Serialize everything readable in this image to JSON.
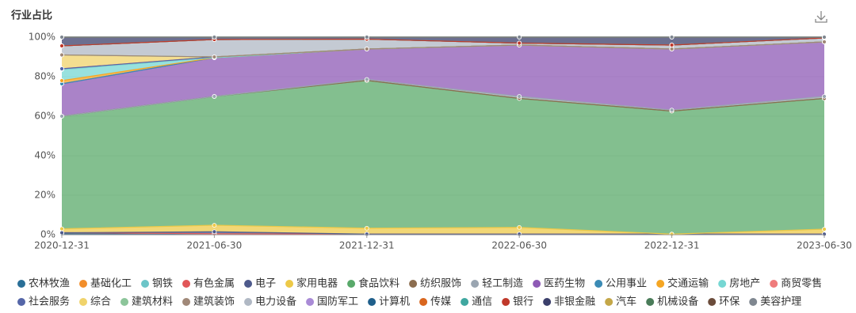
{
  "chart_data": {
    "type": "stacked-area",
    "title": "行业占比",
    "x": [
      "2020-12-31",
      "2021-06-30",
      "2021-12-31",
      "2022-06-30",
      "2022-12-31",
      "2023-06-30"
    ],
    "ylim": [
      0,
      100
    ],
    "yticks": [
      {
        "value": 0,
        "label": "0%"
      },
      {
        "value": 20,
        "label": "20%"
      },
      {
        "value": 40,
        "label": "40%"
      },
      {
        "value": 60,
        "label": "60%"
      },
      {
        "value": 80,
        "label": "80%"
      },
      {
        "value": 100,
        "label": "100%"
      }
    ],
    "grid": true,
    "legend": "bottom",
    "series": [
      {
        "name": "农林牧渔",
        "color": "#2a6f97",
        "values": [
          0.5,
          0.5,
          0.3,
          0.3,
          0.3,
          0.3
        ]
      },
      {
        "name": "基础化工",
        "color": "#f28e2b",
        "values": [
          0.5,
          0,
          0,
          0,
          0,
          0
        ]
      },
      {
        "name": "钢铁",
        "color": "#6cc5c8",
        "values": [
          0,
          0,
          0,
          0,
          0,
          0
        ]
      },
      {
        "name": "有色金属",
        "color": "#e15759",
        "values": [
          0,
          0,
          0,
          0,
          0,
          0
        ]
      },
      {
        "name": "电子",
        "color": "#4e5a8c",
        "values": [
          0,
          1,
          0,
          0,
          0,
          0
        ]
      },
      {
        "name": "家用电器",
        "color": "#edc948",
        "values": [
          2,
          3.3,
          3,
          3.4,
          0,
          2.5
        ]
      },
      {
        "name": "食品饮料",
        "color": "#59a96a",
        "values": [
          57,
          65.2,
          74.8,
          65.3,
          62.3,
          66.2
        ]
      },
      {
        "name": "纺织服饰",
        "color": "#8c6d4f",
        "values": [
          0,
          0,
          0,
          0,
          0,
          0
        ]
      },
      {
        "name": "轻工制造",
        "color": "#9aa5b1",
        "values": [
          0,
          0,
          0.5,
          1,
          0.5,
          1
        ]
      },
      {
        "name": "医药生物",
        "color": "#8e5ab5",
        "values": [
          16.4,
          19.6,
          15.4,
          26,
          30.9,
          27.6
        ]
      },
      {
        "name": "公用事业",
        "color": "#3b8bb5",
        "values": [
          0,
          0,
          0,
          0,
          0,
          0
        ]
      },
      {
        "name": "交通运输",
        "color": "#f5a623",
        "values": [
          1.6,
          0,
          0,
          0,
          0,
          0
        ]
      },
      {
        "name": "房地产",
        "color": "#76d7d3",
        "values": [
          5.6,
          0,
          0,
          0,
          0,
          0
        ]
      },
      {
        "name": "商贸零售",
        "color": "#ef7b7b",
        "values": [
          0.4,
          0.4,
          0,
          0,
          0,
          0
        ]
      },
      {
        "name": "社会服务",
        "color": "#5566a8",
        "values": [
          0,
          0,
          0,
          0,
          0,
          0
        ]
      },
      {
        "name": "综合",
        "color": "#f0d36b",
        "values": [
          7,
          0,
          0,
          0,
          0,
          0
        ]
      },
      {
        "name": "建筑材料",
        "color": "#8cc59a",
        "values": [
          0,
          0,
          0,
          0,
          0,
          0
        ]
      },
      {
        "name": "建筑装饰",
        "color": "#a08878",
        "values": [
          0,
          0,
          0,
          0,
          0,
          0
        ]
      },
      {
        "name": "电力设备",
        "color": "#b0b8c4",
        "values": [
          4.6,
          8.8,
          5,
          1,
          2,
          2
        ]
      },
      {
        "name": "国防军工",
        "color": "#a98bd6",
        "values": [
          0,
          0,
          0,
          0,
          0,
          0
        ]
      },
      {
        "name": "计算机",
        "color": "#1f5f8b",
        "values": [
          0,
          0,
          0,
          0,
          0,
          0
        ]
      },
      {
        "name": "传媒",
        "color": "#d9661e",
        "values": [
          0,
          0,
          0,
          0,
          0,
          0
        ]
      },
      {
        "name": "通信",
        "color": "#3fa7a0",
        "values": [
          0,
          0,
          0,
          0,
          0,
          0
        ]
      },
      {
        "name": "银行",
        "color": "#c0392b",
        "values": [
          0,
          0,
          0,
          0,
          0,
          0
        ]
      },
      {
        "name": "非银金融",
        "color": "#3b3f6b",
        "values": [
          4.4,
          1.2,
          1,
          3,
          4,
          0.4
        ]
      },
      {
        "name": "汽车",
        "color": "#c4a748",
        "values": [
          0,
          0,
          0,
          0,
          0,
          0
        ]
      },
      {
        "name": "机械设备",
        "color": "#4a7c59",
        "values": [
          0,
          0,
          0,
          0,
          0,
          0
        ]
      },
      {
        "name": "环保",
        "color": "#6b4c3b",
        "values": [
          0,
          0,
          0,
          0,
          0,
          0
        ]
      },
      {
        "name": "美容护理",
        "color": "#7f8790",
        "values": [
          0,
          0,
          0,
          0,
          0,
          0
        ]
      }
    ]
  }
}
